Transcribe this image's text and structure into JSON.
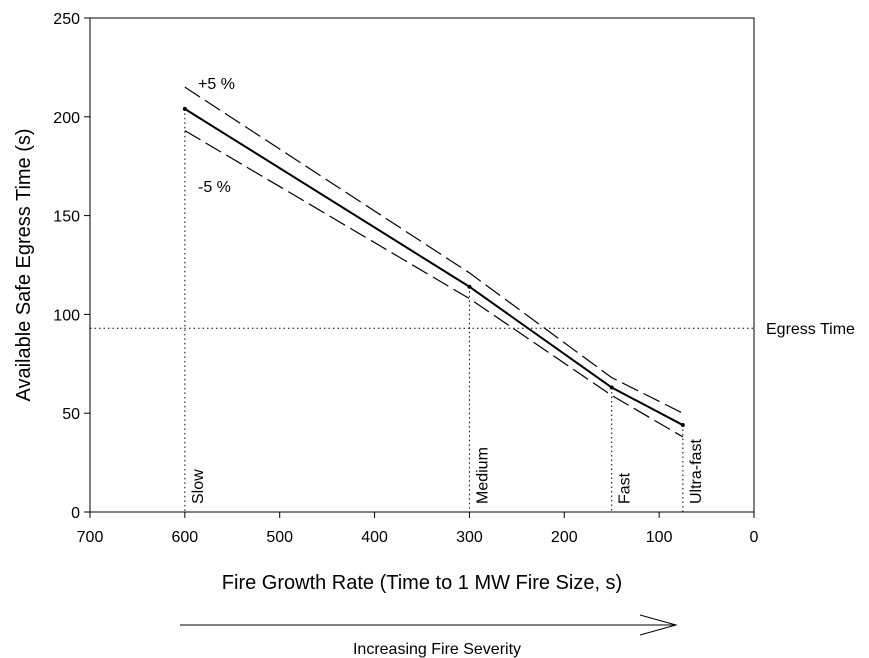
{
  "chart_data": {
    "type": "line",
    "title": "",
    "xlabel": "Fire Growth Rate (Time to 1 MW Fire Size, s)",
    "ylabel": "Available Safe Egress Time (s)",
    "xlim": [
      700,
      0
    ],
    "ylim": [
      0,
      250
    ],
    "x_reversed": true,
    "x_ticks": [
      "700",
      "600",
      "500",
      "400",
      "300",
      "200",
      "100",
      "0"
    ],
    "y_ticks": [
      "0",
      "50",
      "100",
      "150",
      "200",
      "250"
    ],
    "grid": false,
    "series": [
      {
        "name": "",
        "style": "solid",
        "x": [
          600,
          300,
          150,
          75
        ],
        "y": [
          204,
          114,
          63,
          44
        ]
      },
      {
        "name": "+5 %",
        "style": "dashed",
        "x": [
          600,
          300,
          150,
          75
        ],
        "y": [
          215,
          121,
          68,
          50
        ]
      },
      {
        "name": "-5 %",
        "style": "dashed",
        "x": [
          600,
          300,
          150,
          75
        ],
        "y": [
          193,
          108,
          59,
          38
        ]
      }
    ],
    "reference_lines": {
      "horizontal": {
        "y": 93,
        "label": "Egress Time"
      },
      "vertical": [
        {
          "x": 600,
          "label": "Slow"
        },
        {
          "x": 300,
          "label": "Medium"
        },
        {
          "x": 150,
          "label": "Fast"
        },
        {
          "x": 75,
          "label": "Ultra-fast"
        }
      ]
    },
    "annotations": {
      "plus_label": "+5 %",
      "minus_label": "-5 %",
      "arrow_label": "Increasing Fire Severity"
    }
  }
}
